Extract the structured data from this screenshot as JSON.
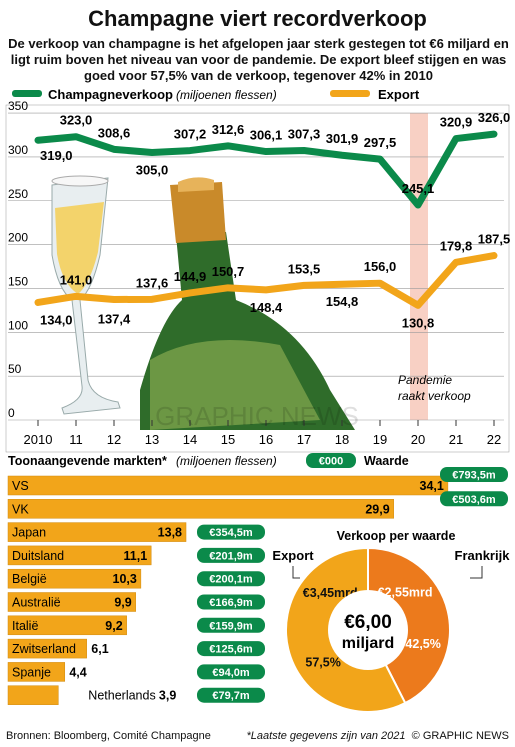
{
  "title": "Champagne viert recordverkoop",
  "subtitle": "De verkoop van champagne is het afgelopen jaar sterk gestegen tot €6 miljard en ligt ruim boven het niveau van voor de pandemie. De export bleef stijgen en was goed voor 57,5% van de verkoop, tegenover 42% in 2010",
  "colors": {
    "green": "#0b8a4a",
    "orange": "#f2a51a",
    "dark_orange": "#ec7a1c",
    "pandemic": "#f6c0b0",
    "panel": "#ffffff"
  },
  "legend": {
    "green_label": "Champagneverkoop",
    "green_unit": "(miljoenen flessen)",
    "orange_label": "Export"
  },
  "annotation": {
    "pandemic_1": "Pandemie",
    "pandemic_2": "raakt verkoop"
  },
  "markets_header": {
    "label": "Toonaangevende markten*",
    "unit": "(miljoenen flessen)",
    "badge": "€000",
    "value_label": "Waarde"
  },
  "pie_title": "Verkoop per waarde",
  "footer": {
    "source": "Bronnen: Bloomberg, Comité Champagne",
    "note": "*Laatste gegevens zijn van 2021",
    "credit": "© GRAPHIC NEWS"
  },
  "watermark": "GRAPHIC NEWS",
  "chart_data": [
    {
      "type": "line",
      "x": [
        "2010",
        "11",
        "12",
        "13",
        "14",
        "15",
        "16",
        "17",
        "18",
        "19",
        "20",
        "21",
        "22"
      ],
      "ylim": [
        0,
        350
      ],
      "yticks": [
        0,
        50,
        100,
        150,
        200,
        250,
        300,
        350
      ],
      "series": [
        {
          "name": "Champagneverkoop",
          "values": [
            319.0,
            323.0,
            308.6,
            305.0,
            307.2,
            312.6,
            306.1,
            307.3,
            301.9,
            297.5,
            245.1,
            320.9,
            326.0
          ],
          "labels": [
            "319,0",
            "323,0",
            "308,6",
            "305,0",
            "307,2",
            "312,6",
            "306,1",
            "307,3",
            "301,9",
            "297,5",
            "245,1",
            "320,9",
            "326,0"
          ]
        },
        {
          "name": "Export",
          "values": [
            134.0,
            141.0,
            137.4,
            137.6,
            144.9,
            150.7,
            148.4,
            153.5,
            154.8,
            156.0,
            130.8,
            179.8,
            187.5
          ],
          "labels": [
            "134,0",
            "141,0",
            "137,4",
            "137,6",
            "144,9",
            "150,7",
            "148,4",
            "153,5",
            "154,8",
            "156,0",
            "130,8",
            "179,8",
            "187,5"
          ]
        }
      ]
    },
    {
      "type": "bar",
      "categories": [
        "VS",
        "VK",
        "Japan",
        "Duitsland",
        "België",
        "Australië",
        "Italië",
        "Zwitserland",
        "Spanje",
        "Netherlands"
      ],
      "values": [
        34.1,
        29.9,
        13.8,
        11.1,
        10.3,
        9.9,
        9.2,
        6.1,
        4.4,
        3.9
      ],
      "value_labels": [
        "34,1",
        "29,9",
        "13,8",
        "11,1",
        "10,3",
        "9,9",
        "9,2",
        "6,1",
        "4,4",
        "3,9"
      ],
      "money_labels": [
        "€793,5m",
        "€503,6m",
        "€354,5m",
        "€201,9m",
        "€200,1m",
        "€166,9m",
        "€159,9m",
        "€125,6m",
        "€94,0m",
        "€79,7m"
      ]
    },
    {
      "type": "pie",
      "labels": [
        "Frankrijk",
        "Export"
      ],
      "values": [
        42.5,
        57.5
      ],
      "percent_labels": [
        "42,5%",
        "57,5%"
      ],
      "amount_labels": [
        "€2,55mrd",
        "€3,45mrd"
      ],
      "center_1": "€6,00",
      "center_2": "miljard"
    }
  ]
}
